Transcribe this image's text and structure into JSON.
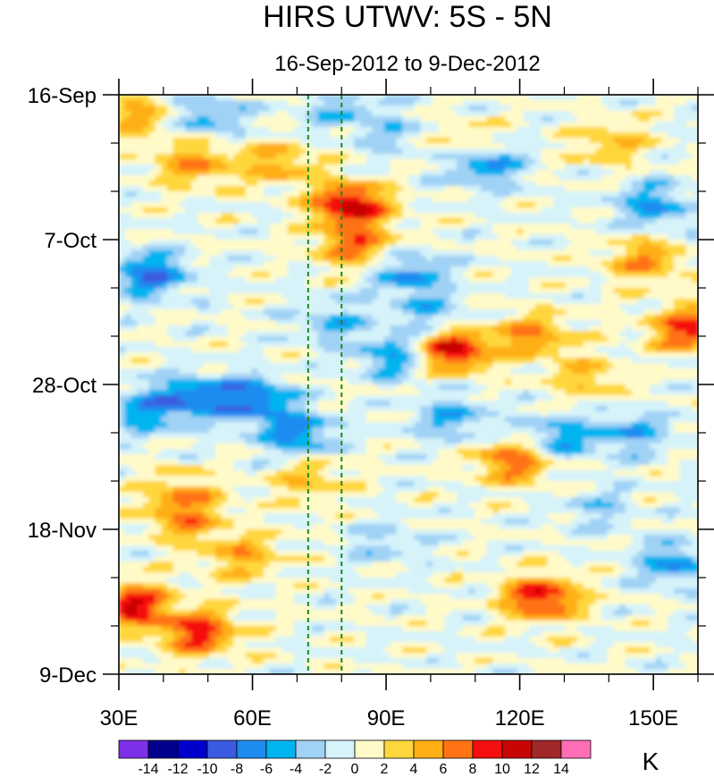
{
  "chart_data": {
    "type": "heatmap",
    "title": "HIRS UTWV: 5S - 5N",
    "subtitle": "16-Sep-2012 to 9-Dec-2012",
    "x_axis": {
      "range": [
        30,
        160
      ],
      "ticks": [
        30,
        60,
        90,
        120,
        150
      ],
      "tick_labels": [
        "30E",
        "60E",
        "90E",
        "120E",
        "150E"
      ]
    },
    "y_axis": {
      "range_days": [
        0,
        84
      ],
      "ticks": [
        0,
        21,
        42,
        63,
        84
      ],
      "tick_labels": [
        "16-Sep",
        "7-Oct",
        "28-Oct",
        "18-Nov",
        "9-Dec"
      ],
      "inverted": true
    },
    "reference_lines_lon": [
      72.5,
      80
    ],
    "colorbar": {
      "unit": "K",
      "levels": [
        -14,
        -12,
        -10,
        -8,
        -6,
        -4,
        -2,
        0,
        2,
        4,
        6,
        8,
        10,
        12,
        14
      ],
      "level_labels": [
        "-14",
        "-12",
        "-10",
        "-8",
        "-6",
        "-4",
        "-2",
        "0",
        "2",
        "4",
        "6",
        "8",
        "10",
        "12",
        "14"
      ],
      "colors": [
        "#7e2fe8",
        "#00008c",
        "#0000cc",
        "#3b5ce0",
        "#1e8cf0",
        "#00b4f0",
        "#a0d2f5",
        "#d6f3fa",
        "#fffac8",
        "#ffd73c",
        "#ffaf14",
        "#ff7314",
        "#f50f0f",
        "#c80505",
        "#a02828",
        "#ff6eb4"
      ]
    },
    "anomaly_features": [
      {
        "lon": 82,
        "day": 16,
        "value": 11
      },
      {
        "lon": 105,
        "day": 37,
        "value": 11
      },
      {
        "lon": 125,
        "day": 73,
        "value": 10
      },
      {
        "lon": 33,
        "day": 74,
        "value": 10
      },
      {
        "lon": 48,
        "day": 78,
        "value": 9
      },
      {
        "lon": 158,
        "day": 34,
        "value": 9
      },
      {
        "lon": 119,
        "day": 53,
        "value": 8
      },
      {
        "lon": 47,
        "day": 10,
        "value": 6
      },
      {
        "lon": 66,
        "day": 10,
        "value": 5
      },
      {
        "lon": 83,
        "day": 22,
        "value": 7
      },
      {
        "lon": 148,
        "day": 24,
        "value": 6
      },
      {
        "lon": 123,
        "day": 35,
        "value": 6
      },
      {
        "lon": 34,
        "day": 3,
        "value": 5
      },
      {
        "lon": 45,
        "day": 62,
        "value": 5
      },
      {
        "lon": 58,
        "day": 67,
        "value": 5
      },
      {
        "lon": 73,
        "day": 56,
        "value": 4
      },
      {
        "lon": 140,
        "day": 7,
        "value": 4
      },
      {
        "lon": 108,
        "day": 7,
        "value": 4
      },
      {
        "lon": 135,
        "day": 41,
        "value": 4
      },
      {
        "lon": 44,
        "day": 58,
        "value": 5
      },
      {
        "lon": 60,
        "day": 44,
        "value": -8
      },
      {
        "lon": 37,
        "day": 26,
        "value": -8
      },
      {
        "lon": 95,
        "day": 26,
        "value": -6
      },
      {
        "lon": 92,
        "day": 38,
        "value": -6
      },
      {
        "lon": 70,
        "day": 49,
        "value": -7
      },
      {
        "lon": 112,
        "day": 10,
        "value": -7
      },
      {
        "lon": 150,
        "day": 16,
        "value": -6
      },
      {
        "lon": 128,
        "day": 50,
        "value": -6
      },
      {
        "lon": 145,
        "day": 49,
        "value": -5
      },
      {
        "lon": 155,
        "day": 68,
        "value": -6
      },
      {
        "lon": 50,
        "day": 3,
        "value": -5
      },
      {
        "lon": 80,
        "day": 2,
        "value": -4
      },
      {
        "lon": 35,
        "day": 46,
        "value": -5
      },
      {
        "lon": 105,
        "day": 47,
        "value": -5
      },
      {
        "lon": 90,
        "day": 65,
        "value": -3
      },
      {
        "lon": 138,
        "day": 60,
        "value": -3
      },
      {
        "lon": 92,
        "day": 6,
        "value": -3
      },
      {
        "lon": 46,
        "day": 44,
        "value": -7
      },
      {
        "lon": 100,
        "day": 32,
        "value": -4
      },
      {
        "lon": 78,
        "day": 33,
        "value": -4
      }
    ]
  }
}
